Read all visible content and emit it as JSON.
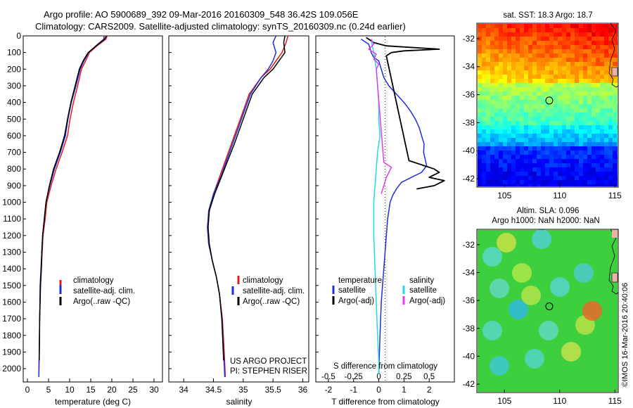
{
  "header": {
    "line1": "Argo profile: AO 5900689_392 09-Mar-2016 20160309_548 36.42S 109.056E",
    "line2": "Climatology: CARS2009. Satellite-adjusted climatology: synTS_20160309.nc (0.24d earlier)"
  },
  "credits": {
    "project": "US ARGO PROJECT",
    "pi": "PI: STEPHEN RISER",
    "imos": "©IMOS 16-Mar-2016 20:40:06"
  },
  "colors": {
    "climatology": "#e41a1c",
    "satellite": "#1f2fd6",
    "argo": "#000000",
    "sal_sat": "#22d8e8",
    "sal_argo": "#e83ae8"
  },
  "chart_data": [
    {
      "id": "temperature",
      "type": "line",
      "xlabel": "temperature (deg C)",
      "ylabel": "",
      "xlim": [
        -1,
        32
      ],
      "ylim": [
        2080,
        0
      ],
      "xticks": [
        0,
        5,
        10,
        15,
        20,
        25,
        30
      ],
      "yticks": [
        0,
        100,
        200,
        300,
        400,
        500,
        600,
        700,
        800,
        900,
        1000,
        1100,
        1200,
        1300,
        1400,
        1500,
        1600,
        1700,
        1800,
        1900,
        2000
      ],
      "legend": [
        "climatology",
        "satellite-adj. clim.",
        "Argo(..raw -QC)"
      ],
      "series": [
        {
          "name": "climatology",
          "color": "#e41a1c",
          "x": [
            18.9,
            18.6,
            16.5,
            14.7,
            13.8,
            12.8,
            11.9,
            10.9,
            10.1,
            9.5,
            8.2,
            6.8,
            5.6,
            4.6,
            4.2,
            3.7,
            3.5,
            3.3,
            3.1,
            2.9,
            2.8,
            2.7
          ],
          "y": [
            0,
            20,
            60,
            100,
            150,
            200,
            300,
            400,
            500,
            600,
            700,
            800,
            900,
            1000,
            1100,
            1200,
            1300,
            1400,
            1500,
            1700,
            1900,
            2050
          ]
        },
        {
          "name": "satellite-adj. clim.",
          "color": "#1f2fd6",
          "x": [
            18.2,
            18.1,
            16.2,
            14.5,
            13.4,
            12.5,
            11.5,
            10.4,
            9.6,
            9.0,
            7.8,
            6.4,
            5.3,
            4.4,
            4.0,
            3.6,
            3.4,
            3.2,
            3.0,
            2.9,
            2.8,
            2.7
          ],
          "y": [
            0,
            20,
            60,
            100,
            150,
            200,
            300,
            400,
            500,
            600,
            700,
            800,
            900,
            1000,
            1100,
            1200,
            1300,
            1400,
            1500,
            1700,
            1900,
            2050
          ]
        },
        {
          "name": "Argo(..raw -QC)",
          "color": "#000000",
          "x": [
            18.7,
            18.3,
            16.3,
            14.4,
            13.2,
            12.3,
            11.3,
            10.3,
            9.5,
            8.8,
            7.6,
            6.2,
            5.2,
            4.4,
            4.0,
            3.6,
            3.4,
            3.3,
            3.1,
            2.9,
            2.8
          ],
          "y": [
            0,
            20,
            60,
            100,
            150,
            200,
            300,
            400,
            500,
            600,
            700,
            800,
            900,
            1000,
            1100,
            1200,
            1300,
            1400,
            1500,
            1700,
            1950
          ]
        }
      ]
    },
    {
      "id": "salinity",
      "type": "line",
      "xlabel": "salinity",
      "ylabel": "",
      "xlim": [
        33.75,
        36.1
      ],
      "ylim": [
        2080,
        0
      ],
      "xticks": [
        34,
        34.5,
        35,
        35.5,
        36
      ],
      "legend": [
        "climatology",
        "satellite-adj. clim.",
        "Argo(..raw -QC)"
      ],
      "series": [
        {
          "name": "climatology",
          "color": "#e41a1c",
          "x": [
            35.75,
            35.72,
            35.65,
            35.55,
            35.45,
            35.3,
            35.1,
            35.0,
            34.9,
            34.8,
            34.7,
            34.6,
            34.5,
            34.43,
            34.4,
            34.42,
            34.48,
            34.55,
            34.6,
            34.65,
            34.68,
            34.7
          ],
          "y": [
            0,
            40,
            100,
            150,
            200,
            250,
            350,
            450,
            550,
            650,
            750,
            850,
            950,
            1050,
            1150,
            1250,
            1350,
            1450,
            1550,
            1700,
            1900,
            2050
          ]
        },
        {
          "name": "satellite-adj. clim.",
          "color": "#1f2fd6",
          "x": [
            35.55,
            35.5,
            35.55,
            35.5,
            35.42,
            35.3,
            35.12,
            35.02,
            34.92,
            34.82,
            34.72,
            34.62,
            34.5,
            34.42,
            34.4,
            34.42,
            34.48,
            34.55,
            34.6,
            34.64,
            34.67,
            34.69
          ],
          "y": [
            0,
            40,
            100,
            150,
            200,
            250,
            350,
            450,
            550,
            650,
            750,
            850,
            950,
            1050,
            1150,
            1250,
            1350,
            1450,
            1550,
            1700,
            1900,
            2050
          ]
        },
        {
          "name": "Argo(..raw -QC)",
          "color": "#000000",
          "x": [
            35.7,
            35.68,
            35.7,
            35.6,
            35.5,
            35.35,
            35.15,
            35.05,
            34.95,
            34.85,
            34.74,
            34.63,
            34.52,
            34.43,
            34.41,
            34.43,
            34.48,
            34.55,
            34.6,
            34.64,
            34.67
          ],
          "y": [
            0,
            40,
            100,
            150,
            200,
            250,
            350,
            450,
            550,
            650,
            750,
            850,
            950,
            1050,
            1150,
            1250,
            1350,
            1450,
            1550,
            1700,
            1950
          ]
        }
      ]
    },
    {
      "id": "difference",
      "type": "line",
      "xlabel": "T difference from climatology",
      "top_label": "S difference from climatology",
      "xlim": [
        -2.5,
        3.0
      ],
      "ylim": [
        2080,
        0
      ],
      "xticks": [
        -2,
        -1,
        0,
        1,
        2
      ],
      "top_xticks": [
        -0.5,
        -0.25,
        0,
        0.25,
        0.5
      ],
      "top_xscale": 0.25,
      "legend_titles": [
        "temperature",
        "salinity"
      ],
      "legend": [
        "satellite",
        "Argo(-adj)",
        "satellite",
        "Argo(-adj)"
      ],
      "series": [
        {
          "name": "temperature satellite",
          "color": "#1f2fd6",
          "x": [
            -0.7,
            -0.4,
            -0.3,
            -0.2,
            0.0,
            0.1,
            0.2,
            0.4,
            0.7,
            1.0,
            1.25,
            1.45,
            1.6,
            1.7,
            1.8,
            1.78,
            1.9,
            1.7,
            1.3,
            0.9,
            0.7,
            0.55,
            0.45,
            0.35,
            0.3,
            0.25,
            0.2,
            0.15,
            0.1,
            0.05,
            0.0
          ],
          "y": [
            20,
            50,
            100,
            130,
            150,
            200,
            250,
            300,
            350,
            400,
            450,
            500,
            550,
            600,
            650,
            700,
            780,
            820,
            850,
            880,
            920,
            960,
            1000,
            1100,
            1200,
            1300,
            1400,
            1500,
            1600,
            1800,
            2030
          ]
        },
        {
          "name": "temperature Argo(-adj)",
          "color": "#000000",
          "x": [
            -0.5,
            -0.2,
            0.3,
            2.4,
            1.0,
            0.5,
            0.4,
            0.3,
            1.2,
            2.2,
            2.4,
            2.0,
            2.6,
            2.2,
            1.5
          ],
          "y": [
            10,
            40,
            60,
            80,
            90,
            100,
            110,
            120,
            750,
            800,
            820,
            850,
            870,
            900,
            920
          ]
        },
        {
          "name": "salinity satellite",
          "color": "#22d8e8",
          "x": [
            -0.3,
            -0.2,
            -0.1,
            -0.05,
            0.0,
            0.0,
            0.05,
            -0.05,
            -0.1,
            -0.2,
            -0.2,
            -0.15,
            -0.1,
            -0.05,
            0.0,
            0.0
          ],
          "y": [
            30,
            100,
            200,
            300,
            400,
            500,
            600,
            700,
            800,
            1000,
            1200,
            1400,
            1600,
            1800,
            1950,
            2030
          ]
        },
        {
          "name": "salinity Argo(-adj)",
          "color": "#e83ae8",
          "x": [
            -0.3,
            -0.2,
            -0.4,
            -0.1,
            -0.2,
            0.0,
            -0.1,
            0.2,
            0.5,
            0.3,
            0.2,
            0.1
          ],
          "y": [
            20,
            50,
            80,
            110,
            140,
            170,
            200,
            760,
            790,
            850,
            900,
            950
          ]
        }
      ]
    },
    {
      "id": "sst-map",
      "type": "heatmap",
      "title": "sat. SST: 18.3 Argo: 18.7",
      "xlim": [
        102.5,
        115.3
      ],
      "ylim": [
        -42.6,
        -30.9
      ],
      "xticks": [
        105,
        110,
        115
      ],
      "yticks": [
        -32,
        -34,
        -36,
        -38,
        -40,
        -42
      ],
      "marker": {
        "lon": 109.056,
        "lat": -36.42
      }
    },
    {
      "id": "sla-map",
      "type": "heatmap",
      "title_line1": "Altim. SLA: 0.096",
      "title_line2": "Argo h1000: NaN h2000: NaN",
      "xlim": [
        102.5,
        115.3
      ],
      "ylim": [
        -42.6,
        -30.9
      ],
      "xticks": [
        105,
        110,
        115
      ],
      "yticks": [
        -32,
        -34,
        -36,
        -38,
        -40,
        -42
      ],
      "marker": {
        "lon": 109.056,
        "lat": -36.42
      }
    }
  ]
}
